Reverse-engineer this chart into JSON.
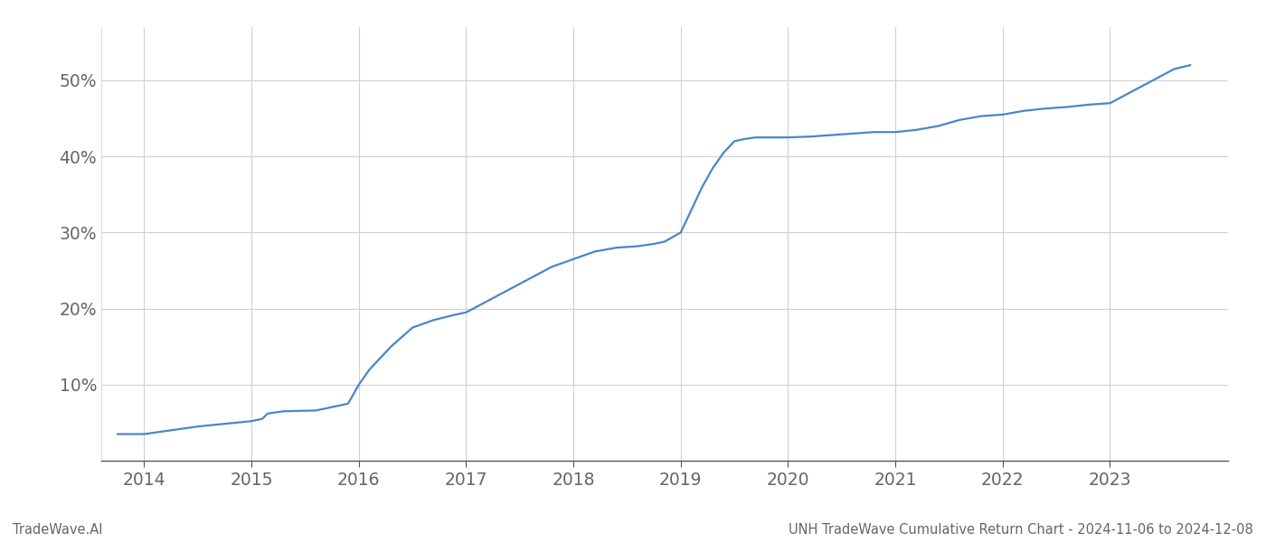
{
  "x_detailed": [
    2013.75,
    2014.0,
    2014.5,
    2015.0,
    2015.1,
    2015.15,
    2015.3,
    2015.6,
    2015.9,
    2016.0,
    2016.1,
    2016.3,
    2016.5,
    2016.7,
    2016.9,
    2017.0,
    2017.2,
    2017.4,
    2017.6,
    2017.8,
    2018.0,
    2018.1,
    2018.2,
    2018.4,
    2018.6,
    2018.75,
    2018.85,
    2019.0,
    2019.1,
    2019.2,
    2019.3,
    2019.4,
    2019.5,
    2019.6,
    2019.7,
    2019.8,
    2019.9,
    2020.0,
    2020.2,
    2020.4,
    2020.6,
    2020.8,
    2021.0,
    2021.2,
    2021.4,
    2021.6,
    2021.8,
    2022.0,
    2022.2,
    2022.4,
    2022.6,
    2022.8,
    2023.0,
    2023.2,
    2023.4,
    2023.6,
    2023.75
  ],
  "y_detailed": [
    3.5,
    3.5,
    4.5,
    5.2,
    5.5,
    6.2,
    6.5,
    6.6,
    7.5,
    10.0,
    12.0,
    15.0,
    17.5,
    18.5,
    19.2,
    19.5,
    21.0,
    22.5,
    24.0,
    25.5,
    26.5,
    27.0,
    27.5,
    28.0,
    28.2,
    28.5,
    28.8,
    30.0,
    33.0,
    36.0,
    38.5,
    40.5,
    42.0,
    42.3,
    42.5,
    42.5,
    42.5,
    42.5,
    42.6,
    42.8,
    43.0,
    43.2,
    43.2,
    43.5,
    44.0,
    44.8,
    45.3,
    45.5,
    46.0,
    46.3,
    46.5,
    46.8,
    47.0,
    48.5,
    50.0,
    51.5,
    52.0
  ],
  "line_color": "#4a86c8",
  "line_width": 1.6,
  "background_color": "#ffffff",
  "grid_color": "#d0d0d0",
  "ytick_labels": [
    "10%",
    "20%",
    "30%",
    "40%",
    "50%"
  ],
  "ytick_values": [
    10,
    20,
    30,
    40,
    50
  ],
  "xtick_labels": [
    "2014",
    "2015",
    "2016",
    "2017",
    "2018",
    "2019",
    "2020",
    "2021",
    "2022",
    "2023"
  ],
  "xtick_values": [
    2014,
    2015,
    2016,
    2017,
    2018,
    2019,
    2020,
    2021,
    2022,
    2023
  ],
  "ylim": [
    0,
    57
  ],
  "xlim": [
    2013.6,
    2024.1
  ],
  "footer_left": "TradeWave.AI",
  "footer_right": "UNH TradeWave Cumulative Return Chart - 2024-11-06 to 2024-12-08",
  "footer_fontsize": 10.5,
  "tick_fontsize": 13.5
}
